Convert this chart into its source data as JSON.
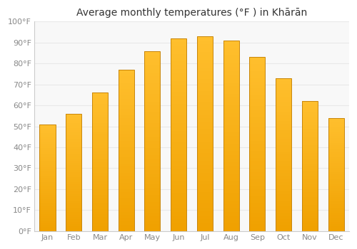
{
  "title": "Average monthly temperatures (°F ) in Khārān",
  "months": [
    "Jan",
    "Feb",
    "Mar",
    "Apr",
    "May",
    "Jun",
    "Jul",
    "Aug",
    "Sep",
    "Oct",
    "Nov",
    "Dec"
  ],
  "values": [
    51,
    56,
    66,
    77,
    86,
    92,
    93,
    91,
    83,
    73,
    62,
    54
  ],
  "bar_color_top": "#FFB347",
  "bar_color_bottom": "#F0A000",
  "bar_edge_color": "#C8860A",
  "ylim": [
    0,
    100
  ],
  "yticks": [
    0,
    10,
    20,
    30,
    40,
    50,
    60,
    70,
    80,
    90,
    100
  ],
  "ytick_labels": [
    "0°F",
    "10°F",
    "20°F",
    "30°F",
    "40°F",
    "50°F",
    "60°F",
    "70°F",
    "80°F",
    "90°F",
    "100°F"
  ],
  "background_color": "#ffffff",
  "plot_bg_color": "#f8f8f8",
  "grid_color": "#e8e8e8",
  "title_fontsize": 10,
  "tick_fontsize": 8,
  "tick_color": "#888888",
  "figsize": [
    5.0,
    3.5
  ],
  "dpi": 100
}
